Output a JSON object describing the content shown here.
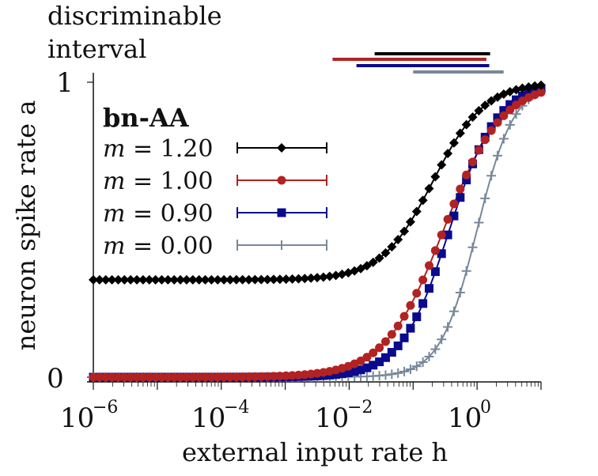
{
  "chart_data": {
    "type": "line",
    "title": "",
    "xlabel": "external input rate h",
    "ylabel": "neuron spike rate a",
    "x_scale": "log",
    "xlim": [
      1e-06,
      10
    ],
    "ylim": [
      0,
      1
    ],
    "x_ticks": [
      {
        "base": "10",
        "exp": "−6"
      },
      {
        "base": "10",
        "exp": "−4"
      },
      {
        "base": "10",
        "exp": "−2"
      },
      {
        "base": "10",
        "exp": "0"
      }
    ],
    "y_ticks": [
      "0",
      "1"
    ],
    "legend_title": "bn-AA",
    "legend_position": "top-left",
    "interval_label": [
      "discriminable",
      "interval"
    ],
    "series": [
      {
        "name": "m = 1.20",
        "m_value": "1.20",
        "color": "#000000",
        "marker": "diamond",
        "a_min": 0.33,
        "h_half": 0.205,
        "hill": 1.08,
        "discriminable_interval": [
          0.025,
          1.6
        ],
        "x": [
          1e-06,
          0.0001,
          0.001,
          0.01,
          0.05,
          0.1,
          0.2,
          0.5,
          1,
          2,
          10
        ],
        "values": [
          0.33,
          0.333,
          0.347,
          0.411,
          0.529,
          0.621,
          0.724,
          0.865,
          0.934,
          0.969,
          0.999
        ]
      },
      {
        "name": "m = 1.00",
        "m_value": "1.00",
        "color": "#b22222",
        "marker": "circle",
        "a_min": 0.0,
        "h_half": 0.3,
        "hill": 0.95,
        "discriminable_interval": [
          0.0055,
          1.4
        ],
        "x": [
          1e-06,
          0.0001,
          0.001,
          0.01,
          0.05,
          0.1,
          0.2,
          0.5,
          1,
          2,
          10
        ],
        "values": [
          0.0,
          0.004,
          0.032,
          0.143,
          0.345,
          0.48,
          0.639,
          0.82,
          0.903,
          0.951,
          0.996
        ]
      },
      {
        "name": "m = 0.90",
        "m_value": "0.90",
        "color": "#0a0a8c",
        "marker": "square",
        "a_min": 0.0,
        "h_half": 0.37,
        "hill": 1.15,
        "discriminable_interval": [
          0.013,
          1.55
        ],
        "x": [
          1e-06,
          0.0001,
          0.001,
          0.01,
          0.05,
          0.1,
          0.2,
          0.5,
          1,
          2,
          10
        ],
        "values": [
          0.0,
          0.0,
          0.01,
          0.051,
          0.248,
          0.37,
          0.548,
          0.811,
          0.919,
          0.967,
          0.998
        ]
      },
      {
        "name": "m = 0.00",
        "m_value": "0.00",
        "color": "#778899",
        "marker": "plus",
        "a_min": 0.0,
        "h_half": 1.0,
        "hill": 1.5,
        "discriminable_interval": [
          0.1,
          2.6
        ],
        "x": [
          1e-06,
          0.0001,
          0.001,
          0.01,
          0.05,
          0.1,
          0.2,
          0.5,
          1,
          2,
          10
        ],
        "values": [
          0.0,
          0.0,
          0.0,
          0.001,
          0.011,
          0.031,
          0.082,
          0.261,
          0.5,
          0.739,
          0.99
        ]
      }
    ]
  }
}
